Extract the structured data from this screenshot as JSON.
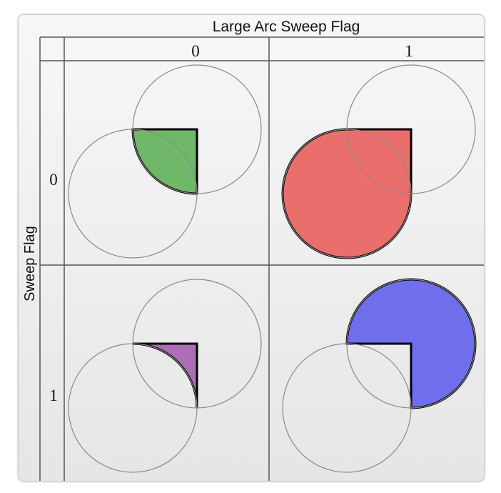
{
  "header": {
    "large_arc_label": "Large Arc Sweep Flag",
    "sweep_label": "Sweep Flag",
    "col_0": "0",
    "col_1": "1",
    "row_0": "0",
    "row_1": "1"
  },
  "colors": {
    "green_fill": "#6fb86a",
    "red_fill": "#ea6f6c",
    "purple_fill": "#ac6fb6",
    "blue_fill": "#6f6fec",
    "grid_line": "#555555",
    "circle_stroke": "#8a8a8a"
  }
}
